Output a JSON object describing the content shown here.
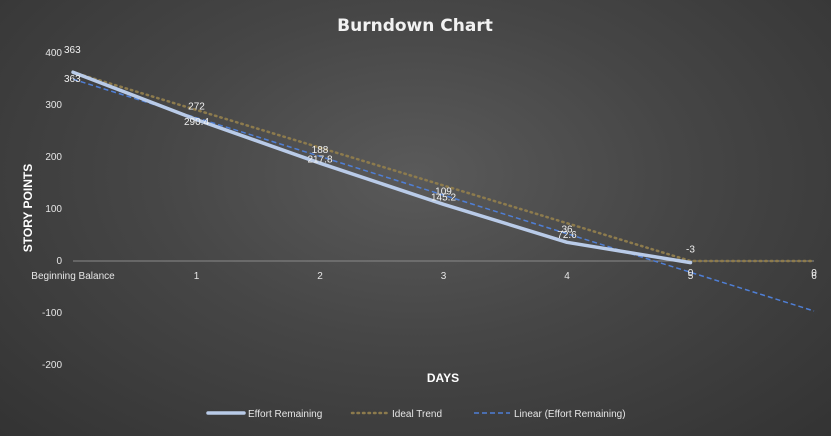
{
  "chart_data": {
    "type": "line",
    "title": "Burndown Chart",
    "xlabel": "DAYS",
    "ylabel": "STORY POINTS",
    "categories": [
      "Beginning Balance",
      "1",
      "2",
      "3",
      "4",
      "5",
      "6"
    ],
    "ylim": [
      -200,
      400
    ],
    "yticks": [
      400,
      300,
      200,
      100,
      0,
      -100,
      -200
    ],
    "grid": false,
    "legend_position": "bottom",
    "series": [
      {
        "name": "Effort Remaining",
        "style": "solid-thick",
        "color": "#b9cbe8",
        "values": [
          363,
          272,
          188,
          109,
          36,
          -3,
          null
        ],
        "labels": [
          "363",
          "272",
          "188",
          "109",
          "36",
          "-3",
          null
        ]
      },
      {
        "name": "Ideal Trend",
        "style": "dotted",
        "color": "#8d7b4d",
        "values": [
          363,
          290.4,
          217.8,
          145.2,
          72.6,
          0,
          0
        ],
        "labels": [
          "363",
          "290.4",
          "217.8",
          "145.2",
          "72.6",
          "0",
          "0"
        ]
      },
      {
        "name": "Linear (Effort Remaining)",
        "style": "dashed",
        "color": "#4f7fd6",
        "values": [
          349.7,
          275.4,
          201.1,
          126.8,
          52.5,
          -21.8,
          -96.1
        ],
        "labels": [
          null,
          null,
          null,
          null,
          null,
          null,
          null
        ]
      }
    ]
  }
}
